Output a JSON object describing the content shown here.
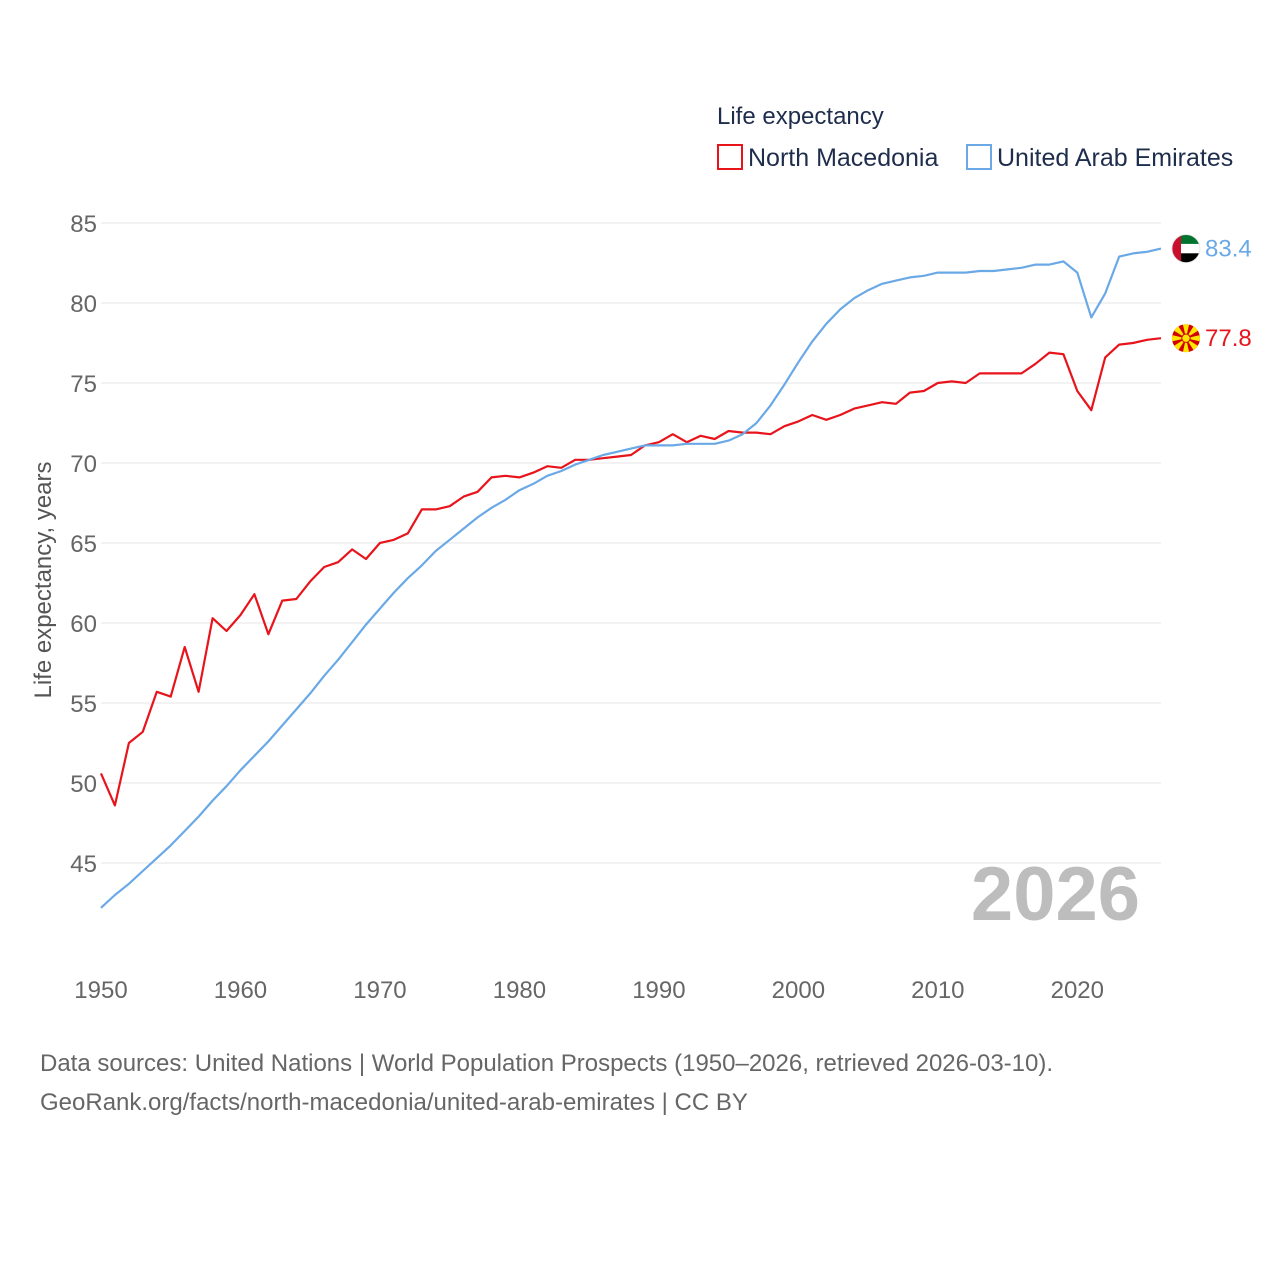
{
  "chart_data": {
    "type": "line",
    "legend_title": "Life expectancy",
    "ylabel": "Life expectancy, years",
    "xlabel": "",
    "ylim": [
      40,
      85
    ],
    "xlim": [
      1950,
      2026
    ],
    "yticks": [
      45,
      50,
      55,
      60,
      65,
      70,
      75,
      80,
      85
    ],
    "xticks": [
      1950,
      1960,
      1970,
      1980,
      1990,
      2000,
      2010,
      2020
    ],
    "year_label": "2026",
    "grid": true,
    "legend_position": "top-right",
    "x": [
      1950,
      1951,
      1952,
      1953,
      1954,
      1955,
      1956,
      1957,
      1958,
      1959,
      1960,
      1961,
      1962,
      1963,
      1964,
      1965,
      1966,
      1967,
      1968,
      1969,
      1970,
      1971,
      1972,
      1973,
      1974,
      1975,
      1976,
      1977,
      1978,
      1979,
      1980,
      1981,
      1982,
      1983,
      1984,
      1985,
      1986,
      1987,
      1988,
      1989,
      1990,
      1991,
      1992,
      1993,
      1994,
      1995,
      1996,
      1997,
      1998,
      1999,
      2000,
      2001,
      2002,
      2003,
      2004,
      2005,
      2006,
      2007,
      2008,
      2009,
      2010,
      2011,
      2012,
      2013,
      2014,
      2015,
      2016,
      2017,
      2018,
      2019,
      2020,
      2021,
      2022,
      2023,
      2024,
      2025,
      2026
    ],
    "series": [
      {
        "name": "North Macedonia",
        "color": "#e8141c",
        "end_label": "77.8",
        "flag": "north-macedonia-flag-icon",
        "values": [
          50.6,
          48.6,
          52.5,
          53.2,
          55.7,
          55.4,
          58.5,
          55.7,
          60.3,
          59.5,
          60.5,
          61.8,
          59.3,
          61.4,
          61.5,
          62.6,
          63.5,
          63.8,
          64.6,
          64.0,
          65.0,
          65.2,
          65.6,
          67.1,
          67.1,
          67.3,
          67.9,
          68.2,
          69.1,
          69.2,
          69.1,
          69.4,
          69.8,
          69.7,
          70.2,
          70.2,
          70.3,
          70.4,
          70.5,
          71.1,
          71.3,
          71.8,
          71.3,
          71.7,
          71.5,
          72.0,
          71.9,
          71.9,
          71.8,
          72.3,
          72.6,
          73.0,
          72.7,
          73.0,
          73.4,
          73.6,
          73.8,
          73.7,
          74.4,
          74.5,
          75.0,
          75.1,
          75.0,
          75.6,
          75.6,
          75.6,
          75.6,
          76.2,
          76.9,
          76.8,
          74.5,
          73.3,
          76.6,
          77.4,
          77.5,
          77.7,
          77.8
        ]
      },
      {
        "name": "United Arab Emirates",
        "color": "#6aa9e6",
        "end_label": "83.4",
        "flag": "uae-flag-icon",
        "values": [
          42.2,
          43.0,
          43.7,
          44.5,
          45.3,
          46.1,
          47.0,
          47.9,
          48.9,
          49.8,
          50.8,
          51.7,
          52.6,
          53.6,
          54.6,
          55.6,
          56.7,
          57.7,
          58.8,
          59.9,
          60.9,
          61.9,
          62.8,
          63.6,
          64.5,
          65.2,
          65.9,
          66.6,
          67.2,
          67.7,
          68.3,
          68.7,
          69.2,
          69.5,
          69.9,
          70.2,
          70.5,
          70.7,
          70.9,
          71.1,
          71.1,
          71.1,
          71.2,
          71.2,
          71.2,
          71.4,
          71.8,
          72.5,
          73.6,
          74.9,
          76.3,
          77.6,
          78.7,
          79.6,
          80.3,
          80.8,
          81.2,
          81.4,
          81.6,
          81.7,
          81.9,
          81.9,
          81.9,
          82.0,
          82.0,
          82.1,
          82.2,
          82.4,
          82.4,
          82.6,
          81.9,
          79.1,
          80.6,
          82.9,
          83.1,
          83.2,
          83.4
        ]
      }
    ],
    "source_line1": "Data sources: United Nations | World Population Prospects (1950–2026, retrieved 2026-03-10).",
    "source_line2": "GeoRank.org/facts/north-macedonia/united-arab-emirates | CC BY"
  }
}
